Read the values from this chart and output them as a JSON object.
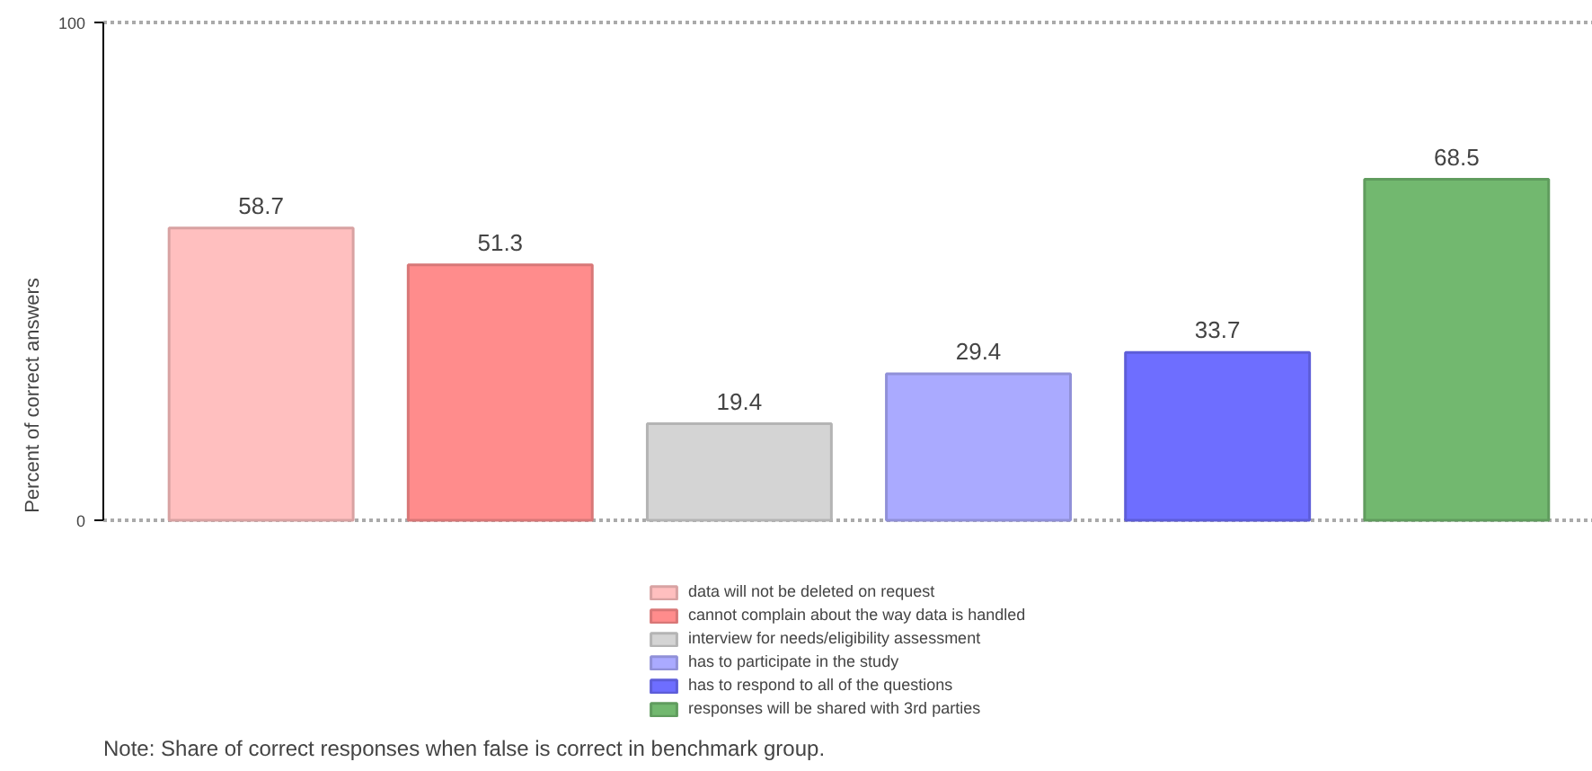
{
  "chart_data": {
    "type": "bar",
    "ylabel": "Percent of correct answers",
    "categories": [
      null,
      null,
      null,
      null,
      null,
      null
    ],
    "series": [
      {
        "name": "data will not be deleted on request",
        "color": "#ffbfbf",
        "values": [
          58.7,
          null,
          null,
          null,
          null,
          null
        ]
      },
      {
        "name": "cannot complain about the way data is handled",
        "color": "#ff8c8c",
        "values": [
          null,
          51.3,
          null,
          null,
          null,
          null
        ]
      },
      {
        "name": "interview for needs/eligibility assessment",
        "color": "#d4d4d4",
        "values": [
          null,
          null,
          19.4,
          null,
          null,
          null
        ]
      },
      {
        "name": "has to participate in the study",
        "color": "#aaaaff",
        "values": [
          null,
          null,
          null,
          29.4,
          null,
          null
        ]
      },
      {
        "name": "has to respond to all of the questions",
        "color": "#6e6eff",
        "values": [
          null,
          null,
          null,
          null,
          33.7,
          null
        ]
      },
      {
        "name": "responses will be shared with 3rd parties",
        "color": "#72b86f",
        "values": [
          null,
          null,
          null,
          null,
          null,
          68.5
        ]
      }
    ],
    "ylim": [
      0,
      100
    ],
    "yticks": [
      0,
      100
    ],
    "grid": "y",
    "legend": "bottom",
    "data_labels": true,
    "annotations": [
      "Note: Share of correct responses when false is correct in benchmark group."
    ]
  }
}
